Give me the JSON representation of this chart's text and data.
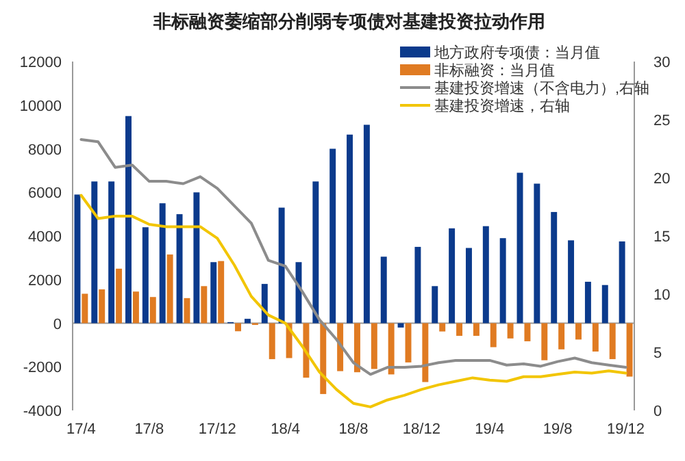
{
  "chart_data": {
    "type": "bar",
    "title": "非标融资萎缩部分削弱专项债对基建投资拉动作用",
    "categories": [
      "17/4",
      null,
      null,
      null,
      "17/8",
      null,
      null,
      null,
      "17/12",
      null,
      null,
      null,
      "18/4",
      null,
      null,
      null,
      "18/8",
      null,
      null,
      null,
      "18/12",
      null,
      null,
      null,
      "19/4",
      null,
      null,
      null,
      "19/8",
      null,
      null,
      null,
      "19/12"
    ],
    "series": [
      {
        "name": "地方政府专项债：当月值",
        "color": "#0b3a8c",
        "values": [
          5900,
          6500,
          6500,
          9500,
          4400,
          5500,
          5000,
          6000,
          2800,
          50,
          200,
          1800,
          5300,
          2800,
          6500,
          8000,
          8650,
          9100,
          3050,
          -200,
          3500,
          1700,
          4350,
          3450,
          4450,
          3900,
          6900,
          6400,
          5100,
          3800,
          1900,
          1750,
          3750
        ]
      },
      {
        "name": "非标融资：当月值",
        "color": "#e07b22",
        "values": [
          1350,
          1550,
          2500,
          1450,
          1200,
          3150,
          1150,
          1700,
          2850,
          -370,
          -80,
          -1650,
          -1600,
          -2500,
          -3250,
          -2200,
          -2250,
          -2100,
          -2350,
          -1800,
          -2700,
          -380,
          -580,
          -580,
          -1100,
          -700,
          -830,
          -1700,
          -1200,
          -750,
          -1300,
          -1650,
          -2450
        ]
      },
      {
        "name": "基建投资增速（不含电力）,右轴",
        "type": "line",
        "axis": "y2",
        "color": "#8c8c8c",
        "values": [
          23.3,
          23.1,
          20.9,
          21.1,
          19.7,
          19.7,
          19.5,
          20.1,
          19.1,
          17.6,
          16.1,
          12.9,
          12.4,
          10.2,
          7.8,
          6.1,
          4.1,
          3.1,
          3.7,
          3.7,
          3.8,
          4.1,
          4.3,
          4.3,
          4.3,
          3.9,
          4.0,
          3.8,
          4.2,
          4.5,
          4.1,
          3.9,
          3.7
        ]
      },
      {
        "name": "基建投资增速，右轴",
        "type": "line",
        "axis": "y2",
        "color": "#f2c500",
        "values": [
          18.5,
          16.5,
          16.7,
          16.7,
          16.0,
          15.8,
          15.8,
          15.8,
          14.8,
          12.5,
          9.8,
          8.2,
          7.5,
          5.5,
          3.3,
          1.8,
          0.6,
          0.3,
          0.9,
          1.3,
          1.8,
          2.2,
          2.5,
          2.8,
          2.6,
          2.5,
          2.9,
          2.9,
          3.1,
          3.3,
          3.2,
          3.4,
          3.2
        ]
      }
    ],
    "ylim": [
      -4000,
      12000
    ],
    "yticks": [
      -4000,
      -2000,
      0,
      2000,
      4000,
      6000,
      8000,
      10000,
      12000
    ],
    "y2lim": [
      0,
      30
    ],
    "y2ticks": [
      0,
      5,
      10,
      15,
      20,
      25,
      30
    ],
    "legend": "top right"
  }
}
